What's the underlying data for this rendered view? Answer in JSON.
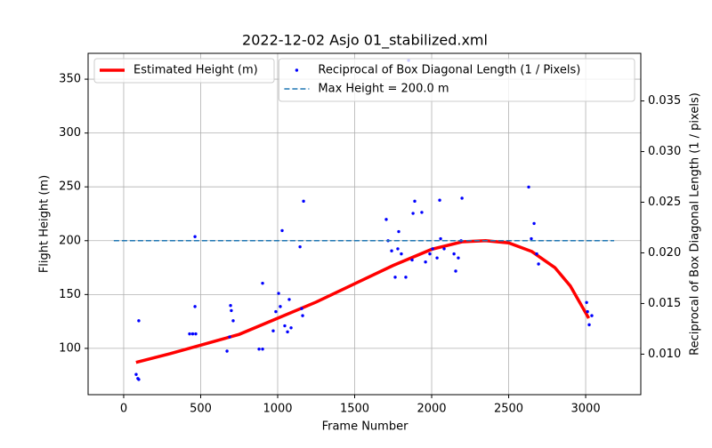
{
  "chart_data": {
    "type": "line",
    "title": "2022-12-02 Asjo 01_stabilized.xml",
    "x_label": "Frame Number",
    "y_label": "Flight Height (m)",
    "y2_label": "Reciprocal of Box Diagonal Length (1 / pixels)",
    "xlim": [
      -231,
      3358
    ],
    "ylim": [
      57,
      374
    ],
    "y2lim": [
      0.006,
      0.0397
    ],
    "xticks": [
      0,
      500,
      1000,
      1500,
      2000,
      2500,
      3000
    ],
    "yticks": [
      100,
      150,
      200,
      250,
      300,
      350
    ],
    "y2ticks": [
      {
        "value": 0.01,
        "label": "0.010"
      },
      {
        "value": 0.015,
        "label": "0.015"
      },
      {
        "value": 0.02,
        "label": "0.020"
      },
      {
        "value": 0.025,
        "label": "0.025"
      },
      {
        "value": 0.03,
        "label": "0.030"
      },
      {
        "value": 0.035,
        "label": "0.035"
      }
    ],
    "grid": true,
    "series": [
      {
        "name": "Estimated Height (m)",
        "type": "line",
        "color": "#ff0000",
        "legend": "upper left",
        "x": [
          80,
          300,
          500,
          750,
          1000,
          1250,
          1500,
          1750,
          2000,
          2200,
          2350,
          2500,
          2650,
          2800,
          2900,
          3000,
          3020
        ],
        "values": [
          87,
          95,
          103,
          113,
          128,
          143,
          160,
          177,
          192,
          199,
          200,
          198,
          190,
          175,
          158,
          133,
          128
        ]
      },
      {
        "name": "Reciprocal of Box Diagonal Length (1 / Pixels)",
        "type": "scatter",
        "axis": "y2",
        "color": "#0000ff",
        "legend": "upper right",
        "x": [
          81,
          92,
          98,
          98,
          428,
          448,
          468,
          463,
          463,
          671,
          688,
          694,
          699,
          711,
          879,
          902,
          902,
          971,
          988,
          1006,
          1017,
          1029,
          1046,
          1064,
          1075,
          1087,
          1145,
          1156,
          1162,
          1168,
          1705,
          1717,
          1740,
          1763,
          1780,
          1786,
          1803,
          1832,
          1850,
          1873,
          1879,
          1890,
          1936,
          1960,
          1988,
          2006,
          2035,
          2052,
          2058,
          2081,
          2145,
          2156,
          2173,
          2191,
          2197,
          2630,
          2647,
          2665,
          2682,
          2694,
          3006,
          3012,
          3023,
          3040
        ],
        "values": [
          0.008,
          0.0076,
          0.0075,
          0.0133,
          0.012,
          0.012,
          0.012,
          0.0147,
          0.0216,
          0.0103,
          0.0117,
          0.0148,
          0.0143,
          0.0133,
          0.0105,
          0.0105,
          0.017,
          0.0123,
          0.0142,
          0.016,
          0.0147,
          0.0222,
          0.0128,
          0.0122,
          0.0154,
          0.0126,
          0.0206,
          0.0145,
          0.0138,
          0.0251,
          0.0233,
          0.0212,
          0.0202,
          0.0176,
          0.0204,
          0.0221,
          0.0199,
          0.0176,
          0.039,
          0.0193,
          0.0239,
          0.0251,
          0.024,
          0.0191,
          0.0199,
          0.0204,
          0.0195,
          0.0252,
          0.0214,
          0.0204,
          0.0199,
          0.0182,
          0.0195,
          0.0212,
          0.0254,
          0.0265,
          0.0214,
          0.0229,
          0.0199,
          0.0189,
          0.0151,
          0.0142,
          0.0129,
          0.0138
        ]
      },
      {
        "name": "Max Height = 200.0 m",
        "type": "line",
        "style": "dashed",
        "color": "#1f77b4",
        "legend": "upper right",
        "x": [
          -64,
          3185
        ],
        "values": [
          200,
          200
        ]
      }
    ]
  }
}
